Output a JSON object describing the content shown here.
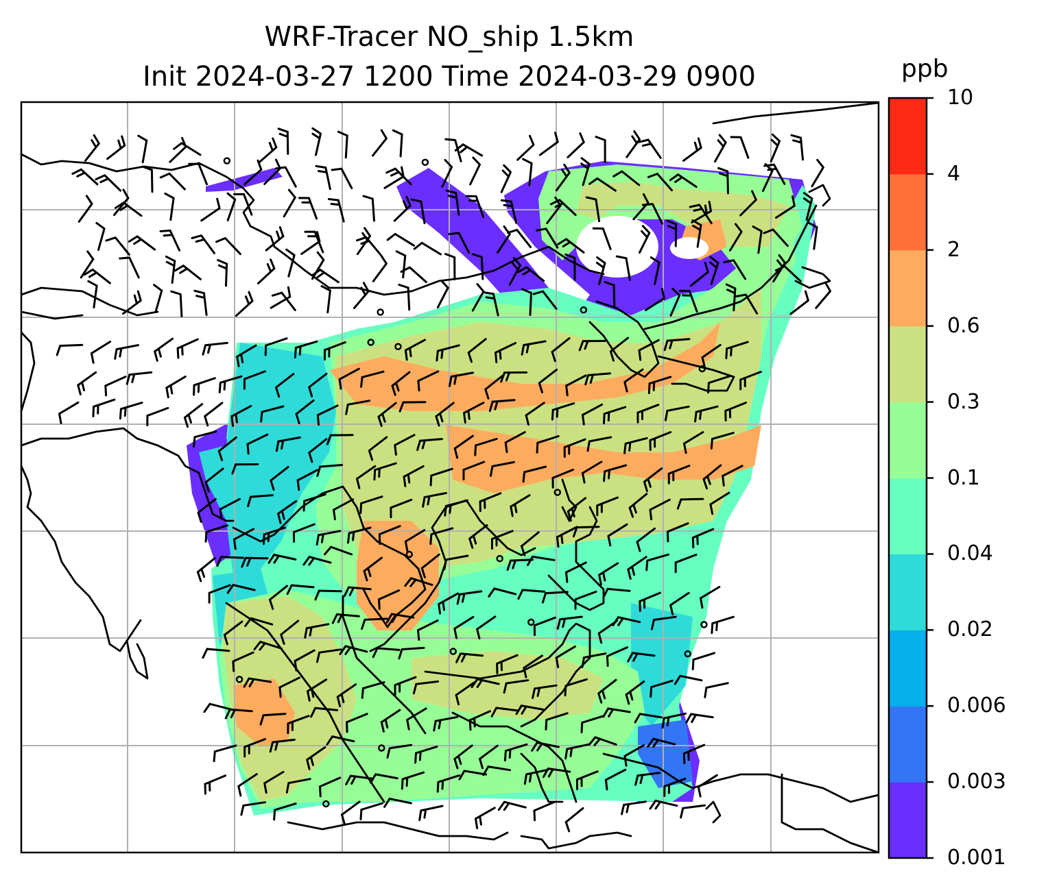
{
  "title": {
    "line1": "WRF-Tracer NO_ship 1.5km",
    "line2": "Init 2024-03-27 1200 Time 2024-03-29 0900"
  },
  "colorbar": {
    "unit": "ppb",
    "tick_labels": [
      "0.001",
      "0.003",
      "0.006",
      "0.02",
      "0.04",
      "0.1",
      "0.3",
      "0.6",
      "2",
      "4",
      "10"
    ],
    "colors": [
      "#6a2eff",
      "#3376f5",
      "#06b0ec",
      "#2fdbd9",
      "#66ffc1",
      "#97fe97",
      "#cbe181",
      "#fdac5f",
      "#ff7138",
      "#ff2a16"
    ]
  },
  "map": {
    "gridlines": true,
    "field_colors": {
      "purple": "#6a2eff",
      "blue": "#3376f5",
      "cyan": "#2fdbd9",
      "aqua": "#66ffc1",
      "green": "#97fe97",
      "olive": "#cbe181",
      "orange": "#fdac5f"
    }
  }
}
